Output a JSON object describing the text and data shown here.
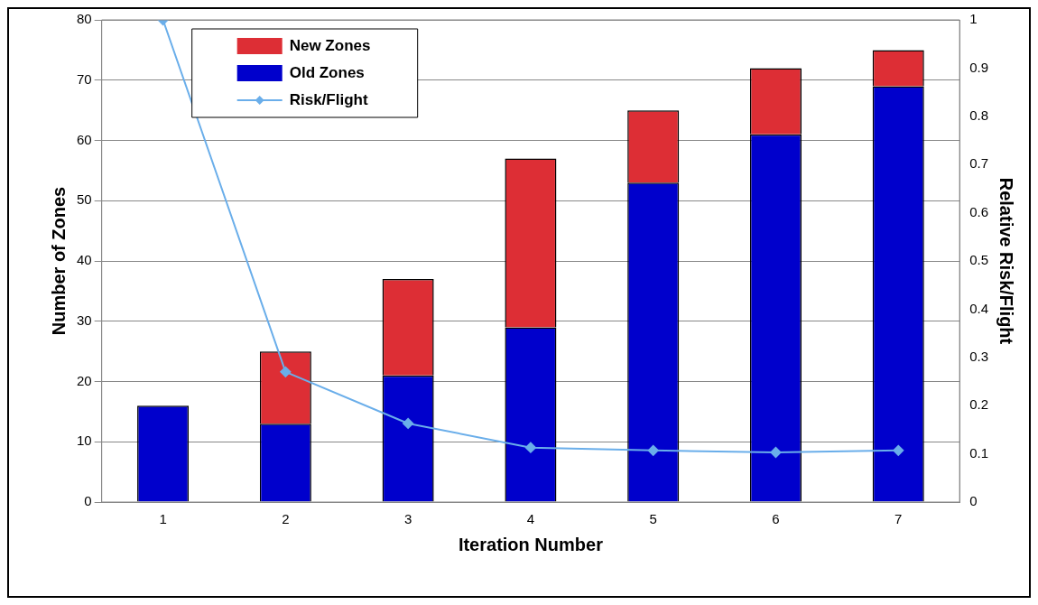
{
  "chart_data": {
    "type": "bar",
    "xlabel": "Iteration Number",
    "ylabel": "Number of Zones",
    "y2label": "Relative Risk/Flight",
    "categories": [
      "1",
      "2",
      "3",
      "4",
      "5",
      "6",
      "7"
    ],
    "stacked": true,
    "series": [
      {
        "name": "Old Zones",
        "color": "#0000cc",
        "values": [
          16,
          13,
          21,
          29,
          53,
          61,
          69
        ]
      },
      {
        "name": "New Zones",
        "color": "#dd2e35",
        "values": [
          0,
          12,
          16,
          28,
          12,
          11,
          6
        ]
      },
      {
        "name": "Risk/Flight",
        "type": "line",
        "axis": "y2",
        "color": "#6aaeea",
        "marker": "diamond",
        "values": [
          1.0,
          0.27,
          0.163,
          0.113,
          0.107,
          0.103,
          0.107
        ]
      }
    ],
    "ylim": [
      0,
      80
    ],
    "yticks": [
      0,
      10,
      20,
      30,
      40,
      50,
      60,
      70,
      80
    ],
    "y2lim": [
      0,
      1
    ],
    "y2ticks": [
      0,
      0.1,
      0.2,
      0.3,
      0.4,
      0.5,
      0.6,
      0.7,
      0.8,
      0.9,
      1
    ],
    "grid": "y",
    "legend": "top left"
  }
}
